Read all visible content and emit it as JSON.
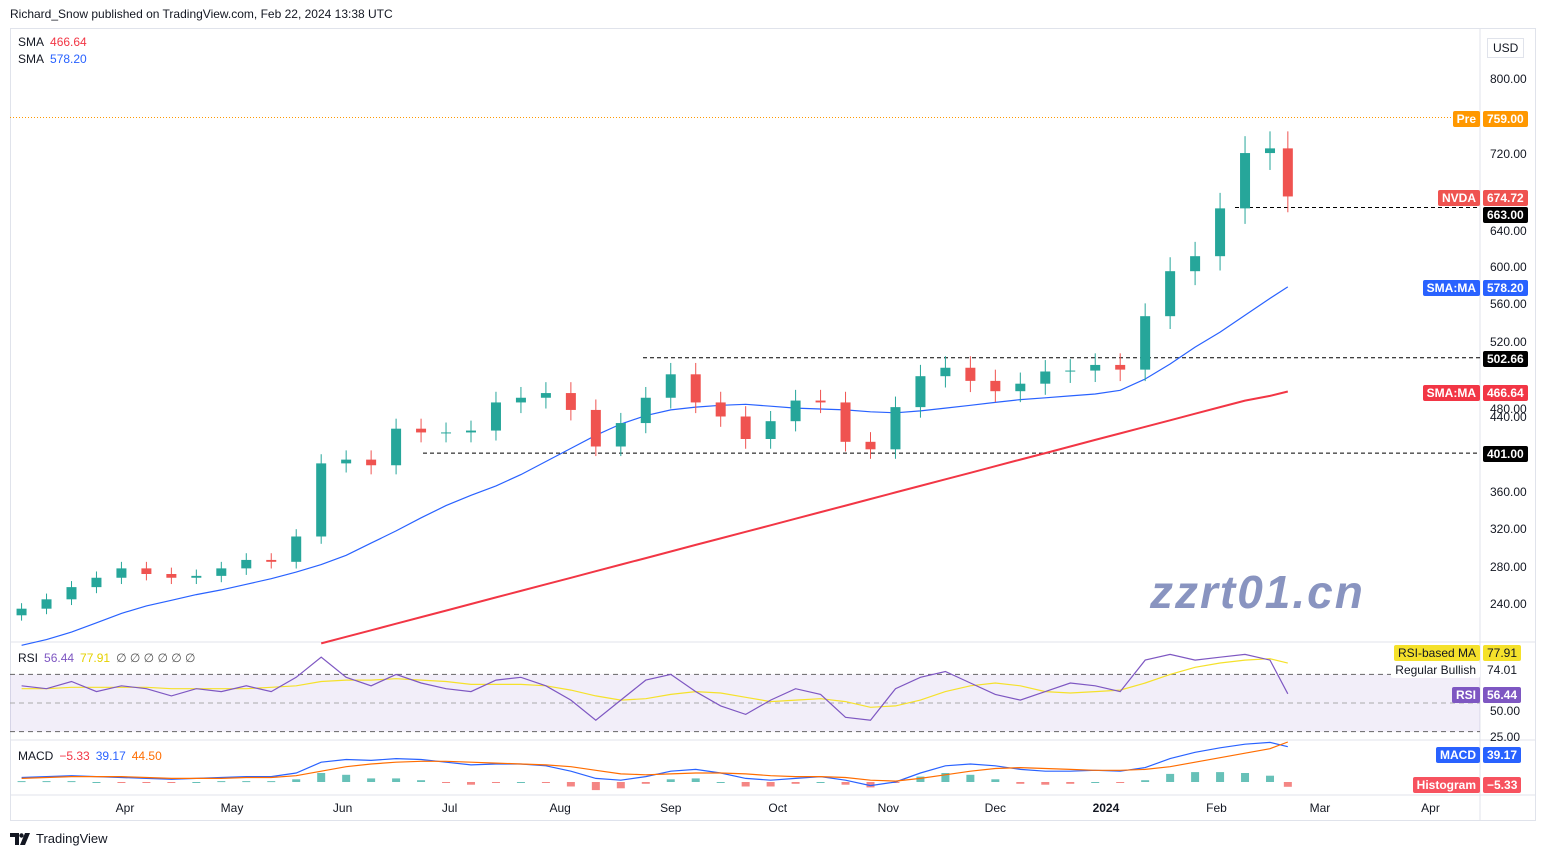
{
  "header": {
    "publisher": "Richard_Snow published on TradingView.com, Feb 22, 2024 13:38 UTC"
  },
  "footer": {
    "brand": "TradingView"
  },
  "watermark": "zzrt01.cn",
  "legend": {
    "sma1_label": "SMA",
    "sma1_value": "466.64",
    "sma2_label": "SMA",
    "sma2_value": "578.20"
  },
  "rsi_legend": {
    "label": "RSI",
    "value": "56.44",
    "ma": "77.91",
    "extras": "∅ ∅ ∅ ∅ ∅ ∅"
  },
  "macd_legend": {
    "label": "MACD",
    "hist": "−5.33",
    "macd": "39.17",
    "signal": "44.50"
  },
  "price_axis": {
    "currency": "USD",
    "ticks": [
      "800.00",
      "720.00",
      "640.00",
      "600.00",
      "560.00",
      "520.00",
      "480.00",
      "440.00",
      "360.00",
      "320.00",
      "280.00",
      "240.00"
    ]
  },
  "tags": {
    "pre_label": "Pre",
    "pre_value": "759.00",
    "nvda_label": "NVDA",
    "nvda_value": "674.72",
    "level1": "663.00",
    "sma50_label": "SMA:MA",
    "sma50_value": "578.20",
    "level2": "502.66",
    "sma200_label": "SMA:MA",
    "sma200_value": "466.64",
    "level3": "401.00",
    "rsima_label": "RSI-based MA",
    "rsima_value": "77.91",
    "bull_label": "Regular Bullish",
    "bull_value": "74.01",
    "rsi_label": "RSI",
    "rsi_value": "56.44",
    "rsi_l50": "50.00",
    "rsi_l25": "25.00",
    "macd_label": "MACD",
    "macd_value": "39.17",
    "hist_label": "Histogram",
    "hist_value": "−5.33"
  },
  "time_axis": [
    {
      "label": "Apr",
      "date": "2023-04-01"
    },
    {
      "label": "May",
      "date": "2023-05-01"
    },
    {
      "label": "Jun",
      "date": "2023-06-01"
    },
    {
      "label": "Jul",
      "date": "2023-07-01"
    },
    {
      "label": "Aug",
      "date": "2023-08-01"
    },
    {
      "label": "Sep",
      "date": "2023-09-01"
    },
    {
      "label": "Oct",
      "date": "2023-10-01"
    },
    {
      "label": "Nov",
      "date": "2023-11-01"
    },
    {
      "label": "Dec",
      "date": "2023-12-01"
    },
    {
      "label": "2024",
      "date": "2024-01-01"
    },
    {
      "label": "Feb",
      "date": "2024-02-01"
    },
    {
      "label": "Mar",
      "date": "2024-03-01"
    },
    {
      "label": "Apr",
      "date": "2024-04-01"
    }
  ],
  "colors": {
    "up": "#26a69a",
    "down": "#ef5350",
    "sma50": "#2962ff",
    "sma200": "#f23645",
    "pre": "#ff9800",
    "rsi": "#7e57c2",
    "rsi_ma": "#f5e12b",
    "macd": "#2962ff",
    "signal": "#ff6d00"
  },
  "chart_data": {
    "type": "candlestick",
    "symbol": "NVDA",
    "ylim": [
      200,
      820
    ],
    "horizontal_levels": [
      759.0,
      663.0,
      502.66,
      401.0
    ],
    "dates": [
      "2023-03-03",
      "2023-03-10",
      "2023-03-17",
      "2023-03-24",
      "2023-03-31",
      "2023-04-07",
      "2023-04-14",
      "2023-04-21",
      "2023-04-28",
      "2023-05-05",
      "2023-05-12",
      "2023-05-19",
      "2023-05-26",
      "2023-06-02",
      "2023-06-09",
      "2023-06-16",
      "2023-06-23",
      "2023-06-30",
      "2023-07-07",
      "2023-07-14",
      "2023-07-21",
      "2023-07-28",
      "2023-08-04",
      "2023-08-11",
      "2023-08-18",
      "2023-08-25",
      "2023-09-01",
      "2023-09-08",
      "2023-09-15",
      "2023-09-22",
      "2023-09-29",
      "2023-10-06",
      "2023-10-13",
      "2023-10-20",
      "2023-10-27",
      "2023-11-03",
      "2023-11-10",
      "2023-11-17",
      "2023-11-24",
      "2023-12-01",
      "2023-12-08",
      "2023-12-15",
      "2023-12-22",
      "2023-12-29",
      "2024-01-05",
      "2024-01-12",
      "2024-01-19",
      "2024-01-26",
      "2024-02-02",
      "2024-02-09",
      "2024-02-16",
      "2024-02-21"
    ],
    "close": [
      235,
      245,
      258,
      268,
      278,
      272,
      268,
      270,
      278,
      287,
      285,
      312,
      390,
      394,
      388,
      427,
      423,
      423,
      425,
      455,
      460,
      465,
      447,
      408,
      433,
      460,
      485,
      455,
      440,
      416,
      435,
      457,
      455,
      413,
      405,
      450,
      483,
      492,
      478,
      467,
      475,
      488,
      489,
      495,
      490,
      547,
      595,
      611,
      662,
      721,
      726,
      674.72
    ],
    "sma50": [
      196,
      202,
      210,
      220,
      230,
      238,
      244,
      250,
      255,
      261,
      267,
      274,
      282,
      292,
      305,
      318,
      332,
      345,
      356,
      366,
      378,
      392,
      406,
      420,
      432,
      441,
      447,
      450,
      452,
      453,
      451,
      449,
      448,
      447,
      445,
      444,
      446,
      449,
      452,
      455,
      458,
      460,
      462,
      464,
      468,
      480,
      496,
      514,
      530,
      548,
      566,
      578.2
    ],
    "sma200": [
      null,
      null,
      null,
      null,
      null,
      null,
      null,
      null,
      null,
      null,
      null,
      null,
      198,
      205,
      212,
      219,
      226,
      233,
      240,
      247,
      254,
      261,
      268,
      275,
      282,
      289,
      296,
      303,
      310,
      317,
      324,
      331,
      338,
      345,
      352,
      359,
      366,
      373,
      380,
      387,
      394,
      401,
      408,
      415,
      422,
      429,
      436,
      443,
      450,
      457,
      462,
      466.64
    ],
    "rsi": [
      62,
      60,
      65,
      58,
      62,
      60,
      55,
      60,
      58,
      62,
      58,
      68,
      82,
      68,
      62,
      70,
      64,
      60,
      58,
      66,
      68,
      62,
      52,
      38,
      52,
      66,
      70,
      58,
      48,
      42,
      52,
      60,
      56,
      40,
      38,
      60,
      68,
      72,
      64,
      56,
      52,
      58,
      64,
      62,
      58,
      80,
      84,
      80,
      82,
      84,
      80,
      56.44
    ],
    "rsi_ma": [
      60,
      60,
      61,
      61,
      61,
      61,
      60,
      60,
      60,
      60,
      61,
      62,
      65,
      66,
      66,
      67,
      66,
      65,
      63,
      63,
      63,
      62,
      59,
      55,
      52,
      53,
      56,
      58,
      57,
      54,
      51,
      52,
      53,
      51,
      47,
      48,
      52,
      58,
      62,
      64,
      62,
      58,
      57,
      58,
      59,
      64,
      70,
      75,
      78,
      80,
      81,
      77.91
    ],
    "rsi_levels": [
      70,
      50,
      30
    ],
    "macd": [
      5,
      6,
      7,
      6,
      5,
      4,
      3,
      4,
      5,
      6,
      6,
      10,
      22,
      25,
      24,
      26,
      25,
      22,
      19,
      20,
      20,
      18,
      12,
      4,
      2,
      6,
      12,
      14,
      10,
      4,
      2,
      4,
      6,
      2,
      -4,
      0,
      10,
      18,
      20,
      18,
      14,
      12,
      12,
      13,
      12,
      16,
      26,
      33,
      38,
      42,
      44,
      39.17
    ],
    "signal": [
      4,
      5,
      6,
      6,
      6,
      5,
      4,
      4,
      4,
      5,
      5,
      7,
      12,
      17,
      20,
      22,
      23,
      23,
      22,
      21,
      20,
      19,
      17,
      13,
      9,
      8,
      9,
      10,
      10,
      9,
      7,
      6,
      6,
      5,
      2,
      1,
      4,
      8,
      12,
      15,
      16,
      15,
      14,
      13,
      13,
      14,
      17,
      22,
      27,
      32,
      37,
      44.5
    ]
  }
}
